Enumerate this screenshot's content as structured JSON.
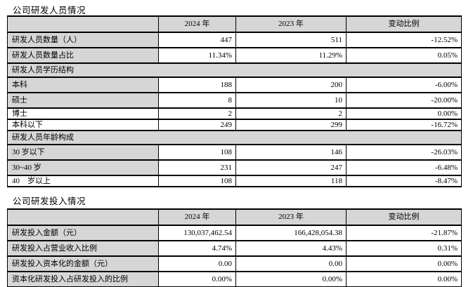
{
  "page": {
    "colors": {
      "shade": "#d6d6d6",
      "line": "#000000",
      "ink": "#000000",
      "background": "#ffffff"
    }
  },
  "personnel": {
    "title": "公司研发人员情况",
    "columns": [
      "",
      "2024 年",
      "2023 年",
      "变动比例"
    ],
    "rows": [
      {
        "type": "data",
        "label": "研发人员数量（人）",
        "v2024": "447",
        "v2023": "511",
        "change": "-12.52%",
        "label_shaded": true
      },
      {
        "type": "data",
        "label": "研发人员数量占比",
        "v2024": "11.34%",
        "v2023": "11.29%",
        "change": "0.05%",
        "label_shaded": true
      },
      {
        "type": "section",
        "label": "研发人员学历结构"
      },
      {
        "type": "data",
        "label": "本科",
        "v2024": "188",
        "v2023": "200",
        "change": "-6.00%",
        "label_shaded": true
      },
      {
        "type": "data",
        "label": "硕士",
        "v2024": "8",
        "v2023": "10",
        "change": "-20.00%",
        "label_shaded": true
      },
      {
        "type": "data",
        "label": "博士",
        "v2024": "2",
        "v2023": "2",
        "change": "0.00%",
        "label_shaded": false
      },
      {
        "type": "data",
        "label": "本科以下",
        "v2024": "249",
        "v2023": "299",
        "change": "-16.72%",
        "label_shaded": false
      },
      {
        "type": "section",
        "label": "研发人员年龄构成"
      },
      {
        "type": "data",
        "label": "30 岁以下",
        "v2024": "108",
        "v2023": "146",
        "change": "-26.03%",
        "label_shaded": true
      },
      {
        "type": "data",
        "label": "30~40 岁",
        "v2024": "231",
        "v2023": "247",
        "change": "-6.48%",
        "label_shaded": true
      },
      {
        "type": "data",
        "label": "40　岁以上",
        "v2024": "108",
        "v2023": "118",
        "change": "-8.47%",
        "label_shaded": false
      }
    ]
  },
  "investment": {
    "title": "公司研发投入情况",
    "columns": [
      "",
      "2024 年",
      "2023 年",
      "变动比例"
    ],
    "rows": [
      {
        "type": "data",
        "label": "研发投入金额（元）",
        "v2024": "130,037,462.54",
        "v2023": "166,428,054.38",
        "change": "-21.87%",
        "label_shaded": true
      },
      {
        "type": "data",
        "label": "研发投入占营业收入比例",
        "v2024": "4.74%",
        "v2023": "4.43%",
        "change": "0.31%",
        "label_shaded": true
      },
      {
        "type": "data",
        "label": "研发投入资本化的金额（元）",
        "v2024": "0.00",
        "v2023": "0.00",
        "change": "0.00%",
        "label_shaded": true
      },
      {
        "type": "data",
        "label": "资本化研发投入占研发投入的比例",
        "v2024": "0.00%",
        "v2023": "0.00%",
        "change": "0.00%",
        "label_shaded": true
      }
    ]
  }
}
